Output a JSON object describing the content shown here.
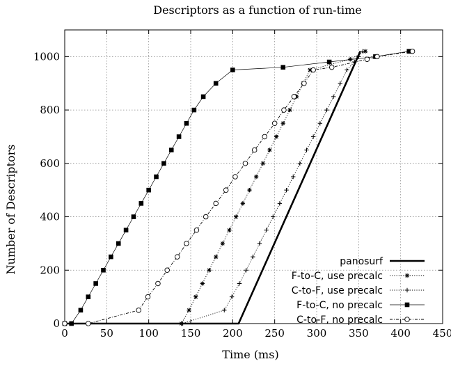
{
  "chart_data": {
    "type": "line",
    "title": "Descriptors as a function of run-time",
    "xlabel": "Time (ms)",
    "ylabel": "Number of Descriptors",
    "xlim": [
      0,
      450
    ],
    "ylim": [
      0,
      1100
    ],
    "xticks": [
      0,
      50,
      100,
      150,
      200,
      250,
      300,
      350,
      400,
      450
    ],
    "yticks": [
      0,
      200,
      400,
      600,
      800,
      1000
    ],
    "grid": true,
    "legend_position": "bottom-right",
    "series": [
      {
        "name": "panosurf",
        "marker": "none",
        "line": "solid-thick",
        "points": [
          [
            0,
            0
          ],
          [
            207,
            0
          ],
          [
            352,
            1020
          ]
        ]
      },
      {
        "name": "F-to-C, use precalc",
        "marker": "asterisk",
        "line": "dotted",
        "points": [
          [
            0,
            0
          ],
          [
            139,
            0
          ],
          [
            148,
            50
          ],
          [
            156,
            100
          ],
          [
            164,
            150
          ],
          [
            172,
            200
          ],
          [
            180,
            250
          ],
          [
            188,
            300
          ],
          [
            196,
            350
          ],
          [
            204,
            400
          ],
          [
            212,
            450
          ],
          [
            220,
            500
          ],
          [
            228,
            550
          ],
          [
            236,
            600
          ],
          [
            244,
            650
          ],
          [
            252,
            700
          ],
          [
            260,
            750
          ],
          [
            268,
            800
          ],
          [
            276,
            850
          ],
          [
            284,
            900
          ],
          [
            292,
            950
          ],
          [
            340,
            990
          ],
          [
            358,
            1020
          ]
        ]
      },
      {
        "name": "C-to-F, use precalc",
        "marker": "plus",
        "line": "dotted",
        "points": [
          [
            0,
            0
          ],
          [
            140,
            0
          ],
          [
            190,
            50
          ],
          [
            199,
            100
          ],
          [
            208,
            150
          ],
          [
            216,
            200
          ],
          [
            224,
            250
          ],
          [
            232,
            300
          ],
          [
            240,
            350
          ],
          [
            248,
            400
          ],
          [
            256,
            450
          ],
          [
            264,
            500
          ],
          [
            272,
            550
          ],
          [
            280,
            600
          ],
          [
            288,
            650
          ],
          [
            296,
            700
          ],
          [
            304,
            750
          ],
          [
            312,
            800
          ],
          [
            320,
            850
          ],
          [
            328,
            900
          ],
          [
            336,
            950
          ],
          [
            345,
            980
          ],
          [
            350,
            1000
          ],
          [
            355,
            1020
          ]
        ]
      },
      {
        "name": "F-to-C, no precalc",
        "marker": "filled-square",
        "line": "thin-solid",
        "points": [
          [
            0,
            0
          ],
          [
            8,
            0
          ],
          [
            19,
            50
          ],
          [
            28,
            100
          ],
          [
            37,
            150
          ],
          [
            46,
            200
          ],
          [
            55,
            250
          ],
          [
            64,
            300
          ],
          [
            73,
            350
          ],
          [
            82,
            400
          ],
          [
            91,
            450
          ],
          [
            100,
            500
          ],
          [
            109,
            550
          ],
          [
            118,
            600
          ],
          [
            127,
            650
          ],
          [
            136,
            700
          ],
          [
            145,
            750
          ],
          [
            154,
            800
          ],
          [
            165,
            850
          ],
          [
            180,
            900
          ],
          [
            200,
            950
          ],
          [
            260,
            960
          ],
          [
            315,
            980
          ],
          [
            370,
            1000
          ],
          [
            410,
            1020
          ]
        ]
      },
      {
        "name": "C-to-F, no precalc",
        "marker": "open-circle",
        "line": "dash-dot",
        "points": [
          [
            0,
            0
          ],
          [
            28,
            0
          ],
          [
            88,
            50
          ],
          [
            99,
            100
          ],
          [
            111,
            150
          ],
          [
            122,
            200
          ],
          [
            134,
            250
          ],
          [
            145,
            300
          ],
          [
            157,
            350
          ],
          [
            168,
            400
          ],
          [
            180,
            450
          ],
          [
            192,
            500
          ],
          [
            203,
            550
          ],
          [
            215,
            600
          ],
          [
            226,
            650
          ],
          [
            238,
            700
          ],
          [
            250,
            750
          ],
          [
            261,
            800
          ],
          [
            273,
            850
          ],
          [
            285,
            900
          ],
          [
            296,
            950
          ],
          [
            318,
            960
          ],
          [
            360,
            990
          ],
          [
            372,
            1000
          ],
          [
            414,
            1020
          ]
        ]
      }
    ]
  }
}
